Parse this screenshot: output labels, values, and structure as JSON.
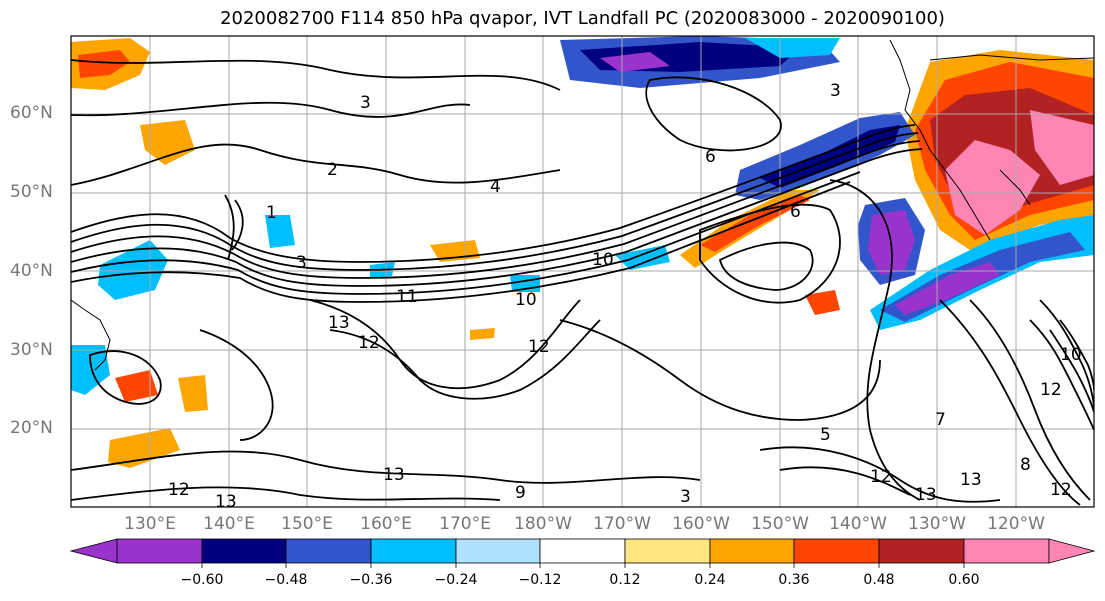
{
  "title": "2020082700 F114 850 hPa qvapor, IVT Landfall PC (2020083000 - 2020090100)",
  "lat_labels": [
    "60°N",
    "50°N",
    "40°N",
    "30°N",
    "20°N"
  ],
  "lon_labels": [
    "130°E",
    "140°E",
    "150°E",
    "160°E",
    "170°E",
    "180°W",
    "170°W",
    "160°W",
    "150°W",
    "140°W",
    "130°W",
    "120°W"
  ],
  "contour_labels": [
    "2",
    "1",
    "3",
    "4",
    "6",
    "10",
    "11",
    "13",
    "12",
    "12",
    "10",
    "12",
    "9",
    "3",
    "13",
    "13",
    "12",
    "12",
    "8",
    "5",
    "7",
    "10",
    "12",
    "13",
    "13",
    "6",
    "3",
    "3"
  ],
  "colorbar": {
    "tick_labels": [
      "−0.60",
      "−0.48",
      "−0.36",
      "−0.24",
      "−0.12",
      "0.12",
      "0.24",
      "0.36",
      "0.48",
      "0.60"
    ],
    "colors": [
      "#9933cc",
      "#000080",
      "#3355cc",
      "#00bfff",
      "#b0e2ff",
      "#ffffff",
      "#ffe680",
      "#ffa500",
      "#ff4500",
      "#b22222",
      "#ff85b4"
    ]
  },
  "chart_data": {
    "type": "contour-map",
    "title": "2020082700 F114 850 hPa qvapor, IVT Landfall PC (2020083000 - 2020090100)",
    "lat_ticks": [
      "60°N",
      "50°N",
      "40°N",
      "30°N",
      "20°N"
    ],
    "lon_ticks": [
      "130°E",
      "140°E",
      "150°E",
      "160°E",
      "170°E",
      "180°W",
      "170°W",
      "160°W",
      "150°W",
      "140°W",
      "130°W",
      "120°W"
    ],
    "colorbar_levels": [
      -0.6,
      -0.48,
      -0.36,
      -0.24,
      -0.12,
      0.12,
      0.24,
      0.36,
      0.48,
      0.6
    ],
    "grid": true
  }
}
